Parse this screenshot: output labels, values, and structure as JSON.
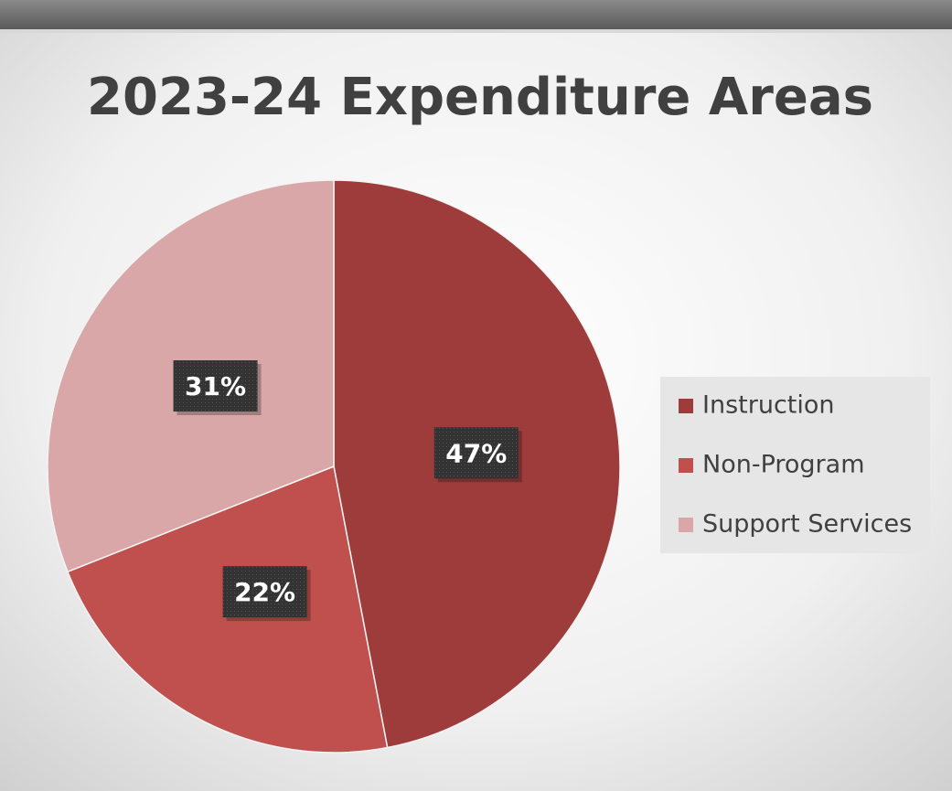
{
  "chart_data": {
    "type": "pie",
    "title": "2023-24 Expenditure Areas",
    "categories": [
      "Instruction",
      "Non-Program",
      "Support Services"
    ],
    "values": [
      47,
      22,
      31
    ],
    "value_labels": [
      "47%",
      "22%",
      "31%"
    ],
    "colors": [
      "#9e3c3c",
      "#c0504d",
      "#d9a7a7"
    ],
    "legend": "right"
  }
}
